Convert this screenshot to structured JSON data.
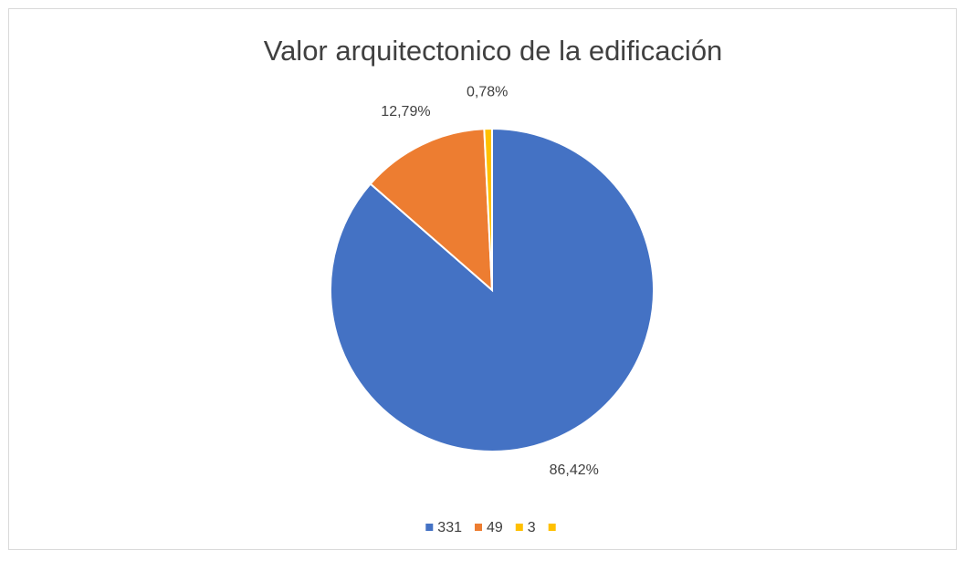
{
  "chart_data": {
    "type": "pie",
    "title": "Valor arquitectonico de la edificación",
    "categories": [
      "331",
      "49",
      "3",
      null
    ],
    "values": [
      86.42,
      12.79,
      0.78,
      0
    ],
    "value_labels": [
      "86,42%",
      "12,79%",
      "0,78%",
      null
    ],
    "colors": [
      "#4472c4",
      "#ed7d31",
      "#ffc000",
      "#ffc000"
    ],
    "legend": "bottom"
  }
}
